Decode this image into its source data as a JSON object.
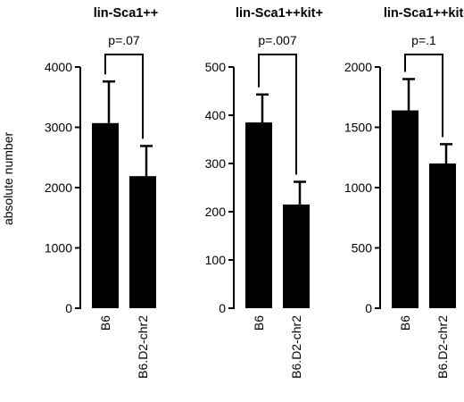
{
  "ylabel": "absolute number",
  "chart_data": [
    {
      "type": "bar",
      "title": "lin-Sca1++",
      "categories": [
        "B6",
        "B6.D2-chr2"
      ],
      "values": [
        3070,
        2190
      ],
      "errors": [
        690,
        500
      ],
      "ylim": [
        0,
        4000
      ],
      "yticks": [
        0,
        1000,
        2000,
        3000,
        4000
      ],
      "pvalue": "p=.07",
      "ylabel": "absolute number",
      "xlabel": ""
    },
    {
      "type": "bar",
      "title": "lin-Sca1++kit+",
      "categories": [
        "B6",
        "B6.D2-chr2"
      ],
      "values": [
        385,
        215
      ],
      "errors": [
        58,
        47
      ],
      "ylim": [
        0,
        500
      ],
      "yticks": [
        0,
        100,
        200,
        300,
        400,
        500
      ],
      "pvalue": "p=.007",
      "ylabel": "",
      "xlabel": ""
    },
    {
      "type": "bar",
      "title": "lin-Sca1++kit-",
      "categories": [
        "B6",
        "B6.D2-chr2"
      ],
      "values": [
        1640,
        1200
      ],
      "errors": [
        260,
        160
      ],
      "ylim": [
        0,
        2000
      ],
      "yticks": [
        0,
        500,
        1000,
        1500,
        2000
      ],
      "pvalue": "p=.1",
      "ylabel": "",
      "xlabel": ""
    }
  ]
}
